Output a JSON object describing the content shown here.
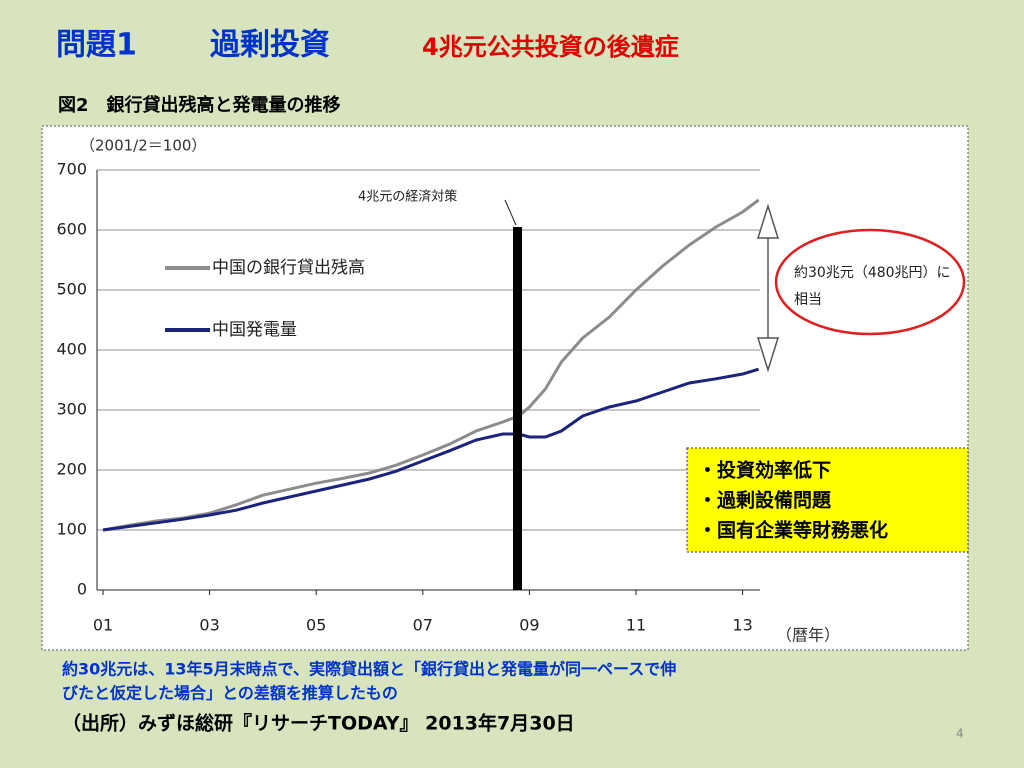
{
  "slide": {
    "title_number": "問題1",
    "title_main": "過剰投資",
    "title_sub": "4兆元公共投資の後遺症",
    "figure_title": "図2　銀行貸出残高と発電量の推移",
    "note": [
      "約30兆元は、13年5月末時点で、実際貸出額と「銀行貸出と発電量が同一ペースで伸",
      "びたと仮定した場合」との差額を推算したもの"
    ],
    "source": "（出所）みずほ総研『リサーチTODAY』 2013年7月30日",
    "page_number": "4"
  },
  "chart_data": {
    "type": "line",
    "y_unit_label": "（2001/2＝100）",
    "x_label": "（暦年）",
    "annotation_stimulus": "4兆元の経済対策",
    "annotation_gap": [
      "約30兆元（480兆円）に",
      "相当"
    ],
    "annotation_box": [
      "・投資効率低下",
      "・過剰設備問題",
      "・国有企業等財務悪化"
    ],
    "x": [
      2001,
      2001.5,
      2002,
      2002.5,
      2003,
      2003.5,
      2004,
      2004.5,
      2005,
      2005.5,
      2006,
      2006.5,
      2007,
      2007.5,
      2008,
      2008.5,
      2008.8,
      2009,
      2009.3,
      2009.6,
      2010,
      2010.5,
      2011,
      2011.5,
      2012,
      2012.5,
      2013,
      2013.3
    ],
    "series": [
      {
        "name": "中国の銀行貸出残高",
        "color": "#8c8c8c",
        "values": [
          100,
          108,
          115,
          120,
          128,
          142,
          158,
          168,
          178,
          186,
          195,
          208,
          225,
          243,
          265,
          280,
          290,
          305,
          335,
          380,
          420,
          455,
          500,
          540,
          575,
          605,
          630,
          650
        ]
      },
      {
        "name": "中国発電量",
        "color": "#1a237e",
        "values": [
          100,
          106,
          112,
          118,
          125,
          133,
          145,
          155,
          165,
          175,
          185,
          198,
          215,
          232,
          250,
          260,
          260,
          255,
          255,
          265,
          290,
          305,
          315,
          330,
          345,
          352,
          360,
          368
        ]
      }
    ],
    "xlim": [
      2001,
      2013.33
    ],
    "xticks": [
      {
        "value": 2001,
        "label": "01"
      },
      {
        "value": 2003,
        "label": "03"
      },
      {
        "value": 2005,
        "label": "05"
      },
      {
        "value": 2007,
        "label": "07"
      },
      {
        "value": 2009,
        "label": "09"
      },
      {
        "value": 2011,
        "label": "11"
      },
      {
        "value": 2013,
        "label": "13"
      }
    ],
    "ylim": [
      0,
      700
    ],
    "yticks": [
      0,
      100,
      200,
      300,
      400,
      500,
      600,
      700
    ],
    "grid": true
  }
}
